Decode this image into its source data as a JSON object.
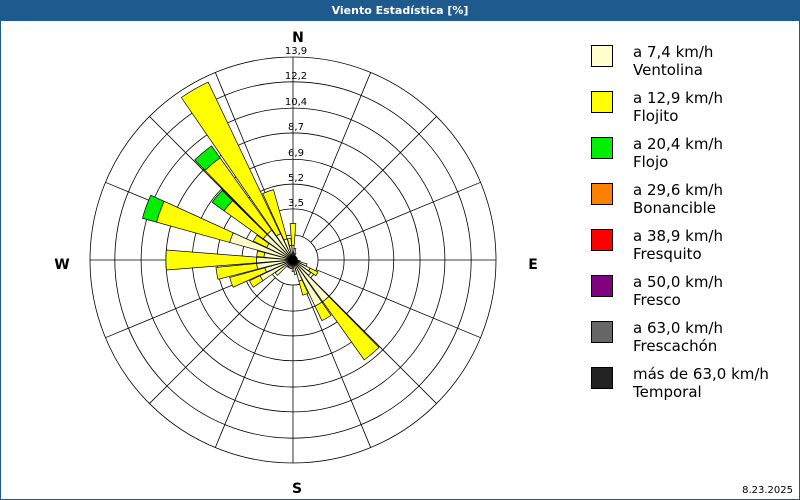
{
  "chart_data": {
    "type": "windrose",
    "title": "Viento Estadística [%]",
    "compass_labels": [
      "N",
      "E",
      "S",
      "W"
    ],
    "date": "8.23.2025",
    "x": [
      0,
      10,
      20,
      30,
      40,
      50,
      60,
      70,
      80,
      90,
      100,
      110,
      120,
      130,
      140,
      150,
      160,
      170,
      180,
      190,
      200,
      210,
      220,
      230,
      240,
      250,
      260,
      270,
      280,
      290,
      300,
      310,
      320,
      330,
      340,
      350
    ],
    "ylim": [
      0,
      13.9
    ],
    "yticks": [
      {
        "value": 3.5,
        "label": "3,5"
      },
      {
        "value": 5.2,
        "label": "5,2"
      },
      {
        "value": 6.9,
        "label": "6,9"
      },
      {
        "value": 8.7,
        "label": "8,7"
      },
      {
        "value": 10.4,
        "label": "10,4"
      },
      {
        "value": 12.2,
        "label": "12,2"
      },
      {
        "value": 13.9,
        "label": "13,9"
      }
    ],
    "series": [
      {
        "name": "a 7,4 km/h",
        "subname": "Ventolina",
        "color": "#ffffcc",
        "values": [
          1.0,
          0.8,
          0.5,
          0.3,
          0.3,
          0.3,
          0.3,
          0.3,
          0.3,
          0.3,
          0.5,
          1.0,
          1.3,
          1.5,
          3.5,
          3.5,
          1.5,
          1.0,
          0.8,
          0.6,
          0.6,
          0.6,
          0.6,
          1.5,
          2.5,
          2.0,
          2.5,
          2.5,
          2.0,
          4.5,
          2.0,
          2.5,
          2.5,
          2.0,
          1.5,
          1.0
        ]
      },
      {
        "name": "a 12,9 km/h",
        "subname": "Flojito",
        "color": "#ffff00",
        "values": [
          1.5,
          0,
          0,
          0,
          0,
          0,
          0,
          0,
          0,
          0,
          0,
          0,
          0.6,
          0,
          4.9,
          1.1,
          1.0,
          0,
          0,
          0,
          0,
          0,
          0,
          0,
          0.8,
          2.5,
          2.8,
          6.2,
          0.5,
          5.2,
          1.0,
          3.3,
          6.1,
          11.5,
          3.5,
          0.5
        ]
      },
      {
        "name": "a 20,4 km/h",
        "subname": "Flojo",
        "color": "#00ee00",
        "values": [
          0,
          0,
          0,
          0,
          0,
          0,
          0,
          0,
          0,
          0,
          0,
          0,
          0,
          0,
          0,
          0,
          0,
          0,
          0,
          0,
          0,
          0,
          0,
          0,
          0,
          0,
          0,
          0,
          0,
          1.0,
          0,
          1.0,
          1.0,
          0,
          0,
          0
        ]
      },
      {
        "name": "a 29,6 km/h",
        "subname": "Bonancible",
        "color": "#ff8000",
        "values": [
          0,
          0,
          0,
          0,
          0,
          0,
          0,
          0,
          0,
          0,
          0,
          0,
          0,
          0,
          0,
          0,
          0,
          0,
          0,
          0,
          0,
          0,
          0,
          0,
          0,
          0,
          0,
          0,
          0,
          0,
          0,
          0,
          0,
          0,
          0,
          0
        ]
      },
      {
        "name": "a 38,9 km/h",
        "subname": "Fresquito",
        "color": "#ff0000",
        "values": [
          0,
          0,
          0,
          0,
          0,
          0,
          0,
          0,
          0,
          0,
          0,
          0,
          0,
          0,
          0,
          0,
          0,
          0,
          0,
          0,
          0,
          0,
          0,
          0,
          0,
          0,
          0,
          0,
          0,
          0,
          0,
          0,
          0,
          0,
          0,
          0
        ]
      },
      {
        "name": "a 50,0 km/h",
        "subname": "Fresco",
        "color": "#800080",
        "values": [
          0,
          0,
          0,
          0,
          0,
          0,
          0,
          0,
          0,
          0,
          0,
          0,
          0,
          0,
          0,
          0,
          0,
          0,
          0,
          0,
          0,
          0,
          0,
          0,
          0,
          0,
          0,
          0,
          0,
          0,
          0,
          0,
          0,
          0,
          0,
          0
        ]
      },
      {
        "name": "a 63,0 km/h",
        "subname": "Frescachón",
        "color": "#666666",
        "values": [
          0,
          0,
          0,
          0,
          0,
          0,
          0,
          0,
          0,
          0,
          0,
          0,
          0,
          0,
          0,
          0,
          0,
          0,
          0,
          0,
          0,
          0,
          0,
          0,
          0,
          0,
          0,
          0,
          0,
          0,
          0,
          0,
          0,
          0,
          0,
          0
        ]
      },
      {
        "name": "más de 63,0 km/h",
        "subname": "Temporal",
        "color": "#222222",
        "values": [
          0,
          0,
          0,
          0,
          0,
          0,
          0,
          0,
          0,
          0,
          0,
          0,
          0,
          0,
          0,
          0,
          0,
          0,
          0,
          0,
          0,
          0,
          0,
          0,
          0,
          0,
          0,
          0,
          0,
          0,
          0,
          0,
          0,
          0,
          0,
          0
        ]
      }
    ]
  }
}
